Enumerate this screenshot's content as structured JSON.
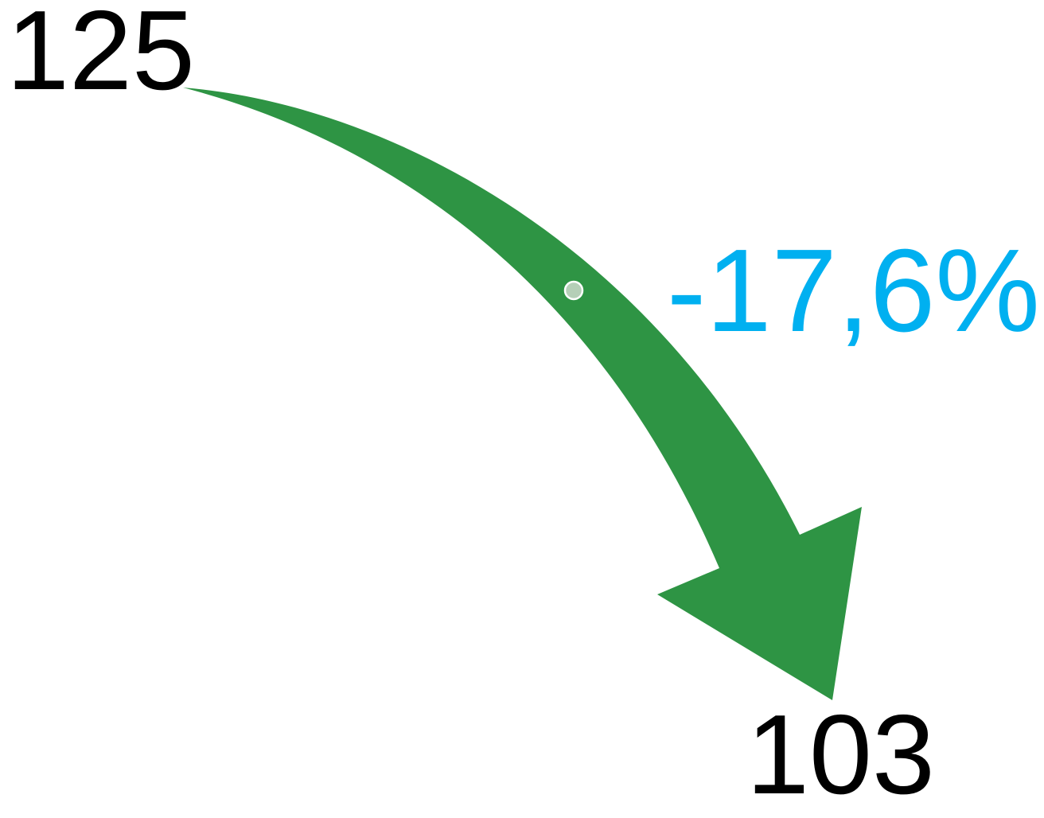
{
  "start_value": "125",
  "end_value": "103",
  "change": "-17,6%",
  "colors": {
    "arrow": "#2e9444",
    "arrow_handle": "#b5cfb7",
    "change_text": "#00b0f0",
    "value_text": "#000000"
  }
}
